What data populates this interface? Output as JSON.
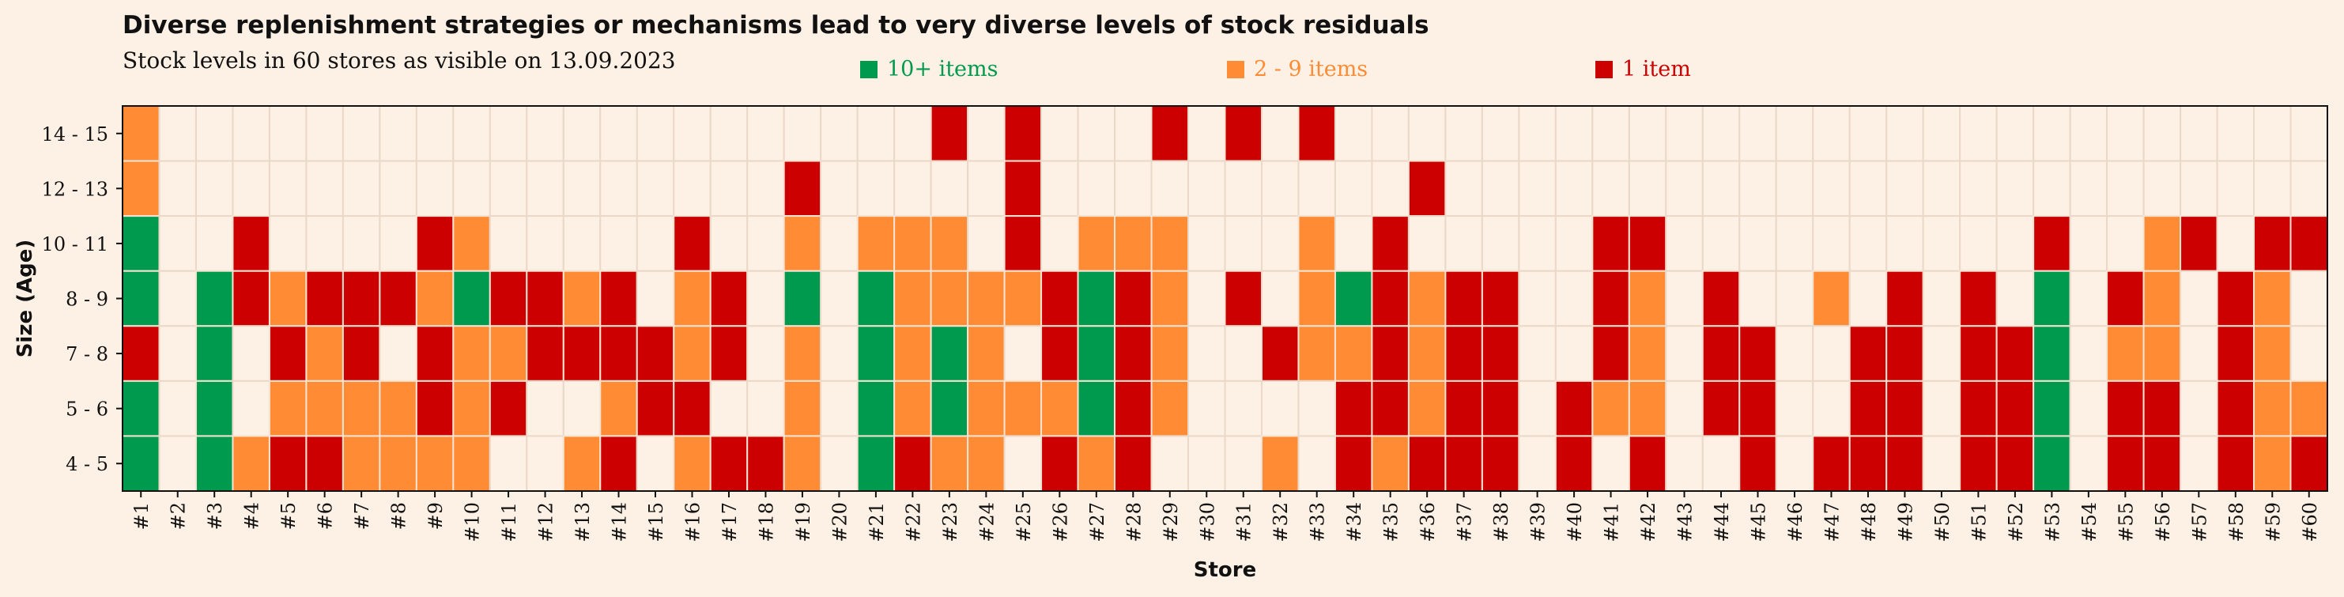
{
  "title": "Diverse replenishment strategies or mechanisms lead to very diverse levels of stock residuals",
  "subtitle": "Stock levels in 60 stores as visible on 13.09.2023",
  "legend": [
    {
      "label": "10+ items",
      "color": "#009a4e"
    },
    {
      "label": "2 - 9 items",
      "color": "#ff8c35"
    },
    {
      "label": "1 item",
      "color": "#cc0000"
    }
  ],
  "colors": {
    "empty": "#fdf0e4",
    "grid": "#ead8c8",
    "background": "#fdf0e4"
  },
  "chart_data": {
    "type": "heatmap",
    "xlabel": "Store",
    "ylabel": "Size (Age)",
    "x": [
      "#1",
      "#2",
      "#3",
      "#4",
      "#5",
      "#6",
      "#7",
      "#8",
      "#9",
      "#10",
      "#11",
      "#12",
      "#13",
      "#14",
      "#15",
      "#16",
      "#17",
      "#18",
      "#19",
      "#20",
      "#21",
      "#22",
      "#23",
      "#24",
      "#25",
      "#26",
      "#27",
      "#28",
      "#29",
      "#30",
      "#31",
      "#32",
      "#33",
      "#34",
      "#35",
      "#36",
      "#37",
      "#38",
      "#39",
      "#40",
      "#41",
      "#42",
      "#43",
      "#44",
      "#45",
      "#46",
      "#47",
      "#48",
      "#49",
      "#50",
      "#51",
      "#52",
      "#53",
      "#54",
      "#55",
      "#56",
      "#57",
      "#58",
      "#59",
      "#60"
    ],
    "y": [
      "14 - 15",
      "12 - 13",
      "10 - 11",
      "8 - 9",
      "7 - 8",
      "5 - 6",
      "4 - 5"
    ],
    "value_scale": {
      "0": "none",
      "1": "1 item",
      "2": "2 - 9 items",
      "3": "10+ items"
    },
    "values": [
      [
        2,
        0,
        0,
        0,
        0,
        0,
        0,
        0,
        0,
        0,
        0,
        0,
        0,
        0,
        0,
        0,
        0,
        0,
        0,
        0,
        0,
        0,
        1,
        0,
        1,
        0,
        0,
        0,
        1,
        0,
        1,
        0,
        1,
        0,
        0,
        0,
        0,
        0,
        0,
        0,
        0,
        0,
        0,
        0,
        0,
        0,
        0,
        0,
        0,
        0,
        0,
        0,
        0,
        0,
        0,
        0,
        0,
        0,
        0,
        0
      ],
      [
        2,
        0,
        0,
        0,
        0,
        0,
        0,
        0,
        0,
        0,
        0,
        0,
        0,
        0,
        0,
        0,
        0,
        0,
        1,
        0,
        0,
        0,
        0,
        0,
        1,
        0,
        0,
        0,
        0,
        0,
        0,
        0,
        0,
        0,
        0,
        1,
        0,
        0,
        0,
        0,
        0,
        0,
        0,
        0,
        0,
        0,
        0,
        0,
        0,
        0,
        0,
        0,
        0,
        0,
        0,
        0,
        0,
        0,
        0,
        0
      ],
      [
        3,
        0,
        0,
        1,
        0,
        0,
        0,
        0,
        1,
        2,
        0,
        0,
        0,
        0,
        0,
        1,
        0,
        0,
        2,
        0,
        2,
        2,
        2,
        0,
        1,
        0,
        2,
        2,
        2,
        0,
        0,
        0,
        2,
        0,
        1,
        0,
        0,
        0,
        0,
        0,
        1,
        1,
        0,
        0,
        0,
        0,
        0,
        0,
        0,
        0,
        0,
        0,
        1,
        0,
        0,
        2,
        1,
        0,
        1,
        1
      ],
      [
        3,
        0,
        3,
        1,
        2,
        1,
        1,
        1,
        2,
        3,
        1,
        1,
        2,
        1,
        0,
        2,
        1,
        0,
        3,
        0,
        3,
        2,
        2,
        2,
        2,
        1,
        3,
        1,
        2,
        0,
        1,
        0,
        2,
        3,
        1,
        2,
        1,
        1,
        0,
        0,
        1,
        2,
        0,
        1,
        0,
        0,
        2,
        0,
        1,
        0,
        1,
        0,
        3,
        0,
        1,
        2,
        0,
        1,
        2,
        0
      ],
      [
        1,
        0,
        3,
        0,
        1,
        2,
        1,
        0,
        1,
        2,
        2,
        1,
        1,
        1,
        1,
        2,
        1,
        0,
        2,
        0,
        3,
        2,
        3,
        2,
        0,
        1,
        3,
        1,
        2,
        0,
        0,
        1,
        2,
        2,
        1,
        2,
        1,
        1,
        0,
        0,
        1,
        2,
        0,
        1,
        1,
        0,
        0,
        1,
        1,
        0,
        1,
        1,
        3,
        0,
        2,
        2,
        0,
        1,
        2,
        0
      ],
      [
        3,
        0,
        3,
        0,
        2,
        2,
        2,
        2,
        1,
        2,
        1,
        0,
        0,
        2,
        1,
        1,
        0,
        0,
        2,
        0,
        3,
        2,
        3,
        2,
        2,
        2,
        3,
        1,
        2,
        0,
        0,
        0,
        0,
        1,
        1,
        2,
        1,
        1,
        0,
        1,
        2,
        2,
        0,
        1,
        1,
        0,
        0,
        1,
        1,
        0,
        1,
        1,
        3,
        0,
        1,
        1,
        0,
        1,
        2,
        2
      ],
      [
        3,
        0,
        3,
        2,
        1,
        1,
        2,
        2,
        2,
        2,
        0,
        0,
        2,
        1,
        0,
        2,
        1,
        1,
        2,
        0,
        3,
        1,
        2,
        2,
        0,
        1,
        2,
        1,
        0,
        0,
        0,
        2,
        0,
        1,
        2,
        1,
        1,
        1,
        0,
        1,
        0,
        1,
        0,
        0,
        1,
        0,
        1,
        1,
        1,
        0,
        1,
        1,
        3,
        0,
        1,
        1,
        0,
        1,
        2,
        1
      ]
    ]
  }
}
